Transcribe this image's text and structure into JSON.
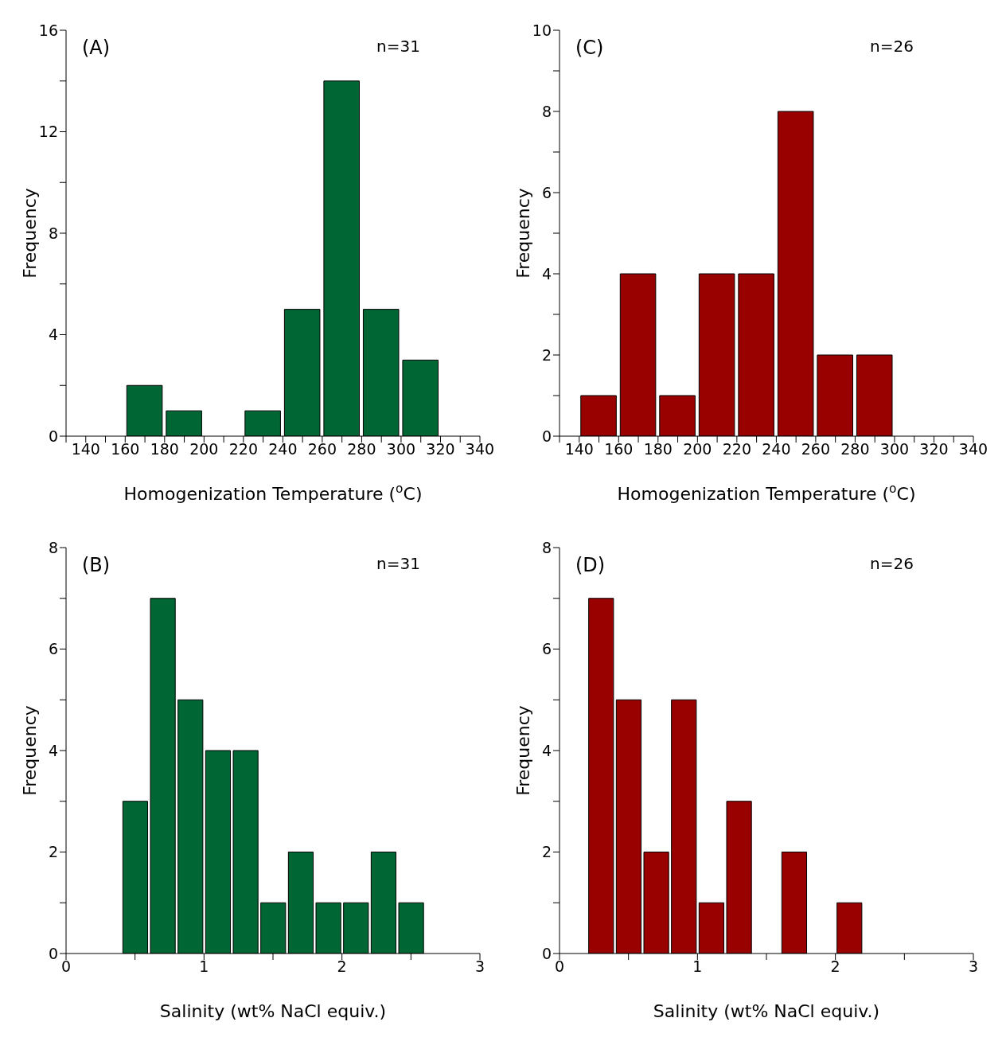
{
  "chart_data": [
    {
      "type": "histogram",
      "annotations": [
        "(A)",
        "n=31"
      ],
      "xlabel": "Homogenization Temperature ($^{o}$C)",
      "ylabel": "Frequency",
      "color": "#006633",
      "bins": [
        160,
        180,
        200,
        220,
        240,
        260,
        280,
        300,
        320
      ],
      "values": [
        2,
        1,
        0,
        1,
        5,
        14,
        5,
        3
      ],
      "xlim": [
        130,
        340
      ],
      "xticks": [
        {
          "value": 130,
          "label": null
        },
        140,
        {
          "value": 150,
          "label": null
        },
        160,
        {
          "value": 170,
          "label": null
        },
        180,
        {
          "value": 190,
          "label": null
        },
        200,
        {
          "value": 210,
          "label": null
        },
        220,
        {
          "value": 230,
          "label": null
        },
        240,
        {
          "value": 250,
          "label": null
        },
        260,
        {
          "value": 270,
          "label": null
        },
        280,
        {
          "value": 290,
          "label": null
        },
        300,
        {
          "value": 310,
          "label": null
        },
        320,
        {
          "value": 330,
          "label": null
        },
        340
      ],
      "ylim": [
        0,
        16
      ],
      "yticks": [
        0,
        {
          "value": 2,
          "label": null
        },
        4,
        {
          "value": 6,
          "label": null
        },
        8,
        {
          "value": 10,
          "label": null
        },
        12,
        {
          "value": 14,
          "label": null
        },
        16
      ]
    },
    {
      "type": "histogram",
      "annotations": [
        "(C)",
        "n=26"
      ],
      "xlabel": "Homogenization Temperature ($^{o}$C)",
      "ylabel": "Frequency",
      "color": "#990000",
      "bins": [
        140,
        160,
        180,
        200,
        220,
        240,
        260,
        280,
        300
      ],
      "values": [
        1,
        4,
        1,
        4,
        4,
        8,
        2,
        2
      ],
      "xlim": [
        130,
        340
      ],
      "xticks": [
        {
          "value": 130,
          "label": null
        },
        140,
        {
          "value": 150,
          "label": null
        },
        160,
        {
          "value": 170,
          "label": null
        },
        180,
        {
          "value": 190,
          "label": null
        },
        200,
        {
          "value": 210,
          "label": null
        },
        220,
        {
          "value": 230,
          "label": null
        },
        240,
        {
          "value": 250,
          "label": null
        },
        260,
        {
          "value": 270,
          "label": null
        },
        280,
        {
          "value": 290,
          "label": null
        },
        300,
        {
          "value": 310,
          "label": null
        },
        320,
        {
          "value": 330,
          "label": null
        },
        340
      ],
      "ylim": [
        0,
        10
      ],
      "yticks": [
        0,
        {
          "value": 1,
          "label": null
        },
        2,
        {
          "value": 3,
          "label": null
        },
        4,
        {
          "value": 5,
          "label": null
        },
        6,
        {
          "value": 7,
          "label": null
        },
        8,
        {
          "value": 9,
          "label": null
        },
        10
      ]
    },
    {
      "type": "histogram",
      "annotations": [
        "(B)",
        "n=31"
      ],
      "xlabel": "Salinity (wt% NaCl equiv.)",
      "ylabel": "Frequency",
      "color": "#006633",
      "bins": [
        0.4,
        0.6,
        0.8,
        1.0,
        1.2,
        1.4,
        1.6,
        1.8,
        2.0,
        2.2,
        2.4,
        2.6
      ],
      "values": [
        3,
        7,
        5,
        4,
        4,
        1,
        2,
        1,
        1,
        2,
        1
      ],
      "xlim": [
        0,
        3
      ],
      "xticks": [
        0,
        {
          "value": 0.5,
          "label": null
        },
        1,
        {
          "value": 1.5,
          "label": null
        },
        2,
        {
          "value": 2.5,
          "label": null
        },
        3
      ],
      "ylim": [
        0,
        8
      ],
      "yticks": [
        0,
        {
          "value": 1,
          "label": null
        },
        2,
        {
          "value": 3,
          "label": null
        },
        4,
        {
          "value": 5,
          "label": null
        },
        6,
        {
          "value": 7,
          "label": null
        },
        8
      ]
    },
    {
      "type": "histogram",
      "annotations": [
        "(D)",
        "n=26"
      ],
      "xlabel": "Salinity (wt% NaCl equiv.)",
      "ylabel": "Frequency",
      "color": "#990000",
      "bins": [
        0.2,
        0.4,
        0.6,
        0.8,
        1.0,
        1.2,
        1.4,
        1.6,
        1.8,
        2.0,
        2.2
      ],
      "values": [
        7,
        5,
        2,
        5,
        1,
        3,
        0,
        2,
        0,
        1
      ],
      "xlim": [
        0,
        3
      ],
      "xticks": [
        0,
        {
          "value": 0.5,
          "label": null
        },
        1,
        {
          "value": 1.5,
          "label": null
        },
        2,
        {
          "value": 2.5,
          "label": null
        },
        3
      ],
      "ylim": [
        0,
        8
      ],
      "yticks": [
        0,
        {
          "value": 1,
          "label": null
        },
        2,
        {
          "value": 3,
          "label": null
        },
        4,
        {
          "value": 5,
          "label": null
        },
        6,
        {
          "value": 7,
          "label": null
        },
        8
      ]
    }
  ]
}
